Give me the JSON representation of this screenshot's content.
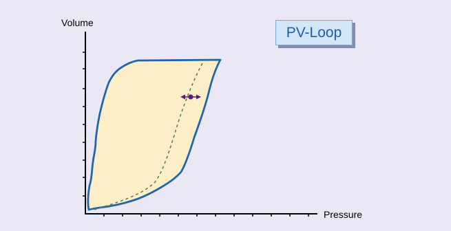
{
  "diagram": {
    "badge_label": "PV-Loop",
    "y_axis_label": "Volume",
    "x_axis_label": "Pressure"
  },
  "colors": {
    "background": "#e9e8f4",
    "loop_fill": "#fcefc8",
    "loop_stroke": "#2066a8",
    "dashed_curve": "#5a8060",
    "marker": "#5a1a78",
    "badge_text": "#1f5fa8",
    "badge_fill": "#d3e6f7",
    "badge_shadow": "#7f8fb4"
  },
  "icons": {
    "marker": "double-arrow-with-dot-icon"
  }
}
